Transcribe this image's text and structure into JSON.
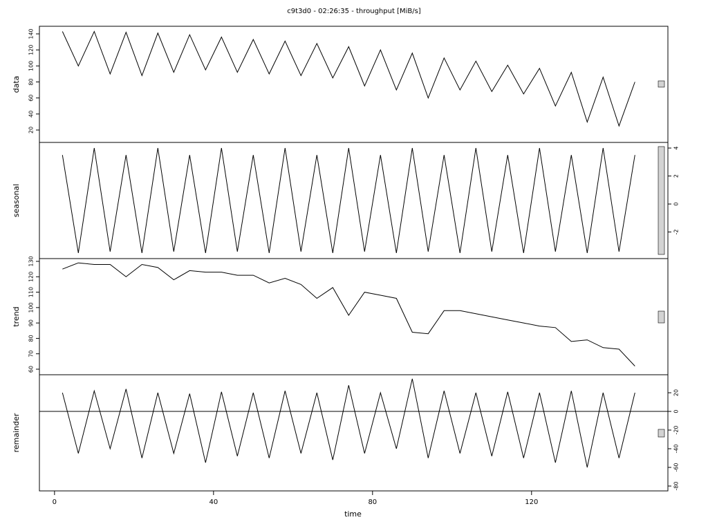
{
  "chart_data": [
    {
      "type": "line",
      "title": "c9t3d0 - 02:26:35 - throughput [MiB/s]",
      "ylabel": "data",
      "tick_side": "left",
      "xlim": [
        -3.8,
        154.3
      ],
      "ylim": [
        4.5,
        149.5
      ],
      "yticks": [
        20,
        40,
        60,
        80,
        100,
        120,
        140
      ],
      "x": [
        2,
        6,
        10,
        14,
        18,
        22,
        26,
        30,
        34,
        38,
        42,
        46,
        50,
        54,
        58,
        62,
        66,
        70,
        74,
        78,
        82,
        86,
        90,
        94,
        98,
        102,
        106,
        110,
        114,
        118,
        122,
        126,
        130,
        134,
        138,
        142,
        146
      ],
      "values": [
        143,
        100,
        143,
        90,
        142,
        88,
        141,
        92,
        139,
        95,
        136,
        92,
        133,
        90,
        131,
        88,
        128,
        85,
        124,
        75,
        120,
        70,
        116,
        60,
        110,
        70,
        106,
        68,
        101,
        65,
        97,
        50,
        92,
        30,
        86,
        25,
        80
      ],
      "color": "#000000"
    },
    {
      "type": "line",
      "ylabel": "seasonal",
      "tick_side": "right",
      "xlim": [
        -3.8,
        154.3
      ],
      "ylim": [
        -3.9,
        4.4
      ],
      "yticks": [
        -2,
        0,
        2,
        4
      ],
      "x": [
        2,
        6,
        10,
        14,
        18,
        22,
        26,
        30,
        34,
        38,
        42,
        46,
        50,
        54,
        58,
        62,
        66,
        70,
        74,
        78,
        82,
        86,
        90,
        94,
        98,
        102,
        106,
        110,
        114,
        118,
        122,
        126,
        130,
        134,
        138,
        142,
        146
      ],
      "values": [
        3.5,
        -3.5,
        4,
        -3.4,
        3.5,
        -3.5,
        4,
        -3.4,
        3.5,
        -3.5,
        4,
        -3.4,
        3.5,
        -3.5,
        4,
        -3.4,
        3.5,
        -3.5,
        4,
        -3.4,
        3.5,
        -3.5,
        4,
        -3.4,
        3.5,
        -3.5,
        4,
        -3.4,
        3.5,
        -3.5,
        4,
        -3.4,
        3.5,
        -3.5,
        4,
        -3.4,
        3.5
      ],
      "color": "#000000"
    },
    {
      "type": "line",
      "ylabel": "trend",
      "tick_side": "left",
      "xlim": [
        -3.8,
        154.3
      ],
      "ylim": [
        56.4,
        131.8
      ],
      "yticks": [
        60,
        70,
        80,
        90,
        100,
        110,
        120,
        130
      ],
      "x": [
        2,
        6,
        10,
        14,
        18,
        22,
        26,
        30,
        34,
        38,
        42,
        46,
        50,
        54,
        58,
        62,
        66,
        70,
        74,
        78,
        82,
        86,
        90,
        94,
        98,
        102,
        106,
        110,
        114,
        118,
        122,
        126,
        130,
        134,
        138,
        142,
        146
      ],
      "values": [
        125,
        129,
        128,
        128,
        120,
        128,
        126,
        118,
        124,
        123,
        123,
        121,
        121,
        116,
        119,
        115,
        106,
        113,
        95,
        110,
        108,
        106,
        84,
        83,
        98,
        98,
        96,
        94,
        92,
        90,
        88,
        87,
        78,
        79,
        74,
        73,
        62
      ],
      "color": "#000000"
    },
    {
      "type": "line",
      "ylabel": "remainder",
      "tick_side": "right",
      "xlabel": "time",
      "xlim": [
        -3.8,
        154.3
      ],
      "ylim": [
        -85.2,
        39.3
      ],
      "yticks": [
        -80,
        -60,
        -40,
        -20,
        0,
        20
      ],
      "xticks": [
        0,
        40,
        80,
        120
      ],
      "x": [
        2,
        6,
        10,
        14,
        18,
        22,
        26,
        30,
        34,
        38,
        42,
        46,
        50,
        54,
        58,
        62,
        66,
        70,
        74,
        78,
        82,
        86,
        90,
        94,
        98,
        102,
        106,
        110,
        114,
        118,
        122,
        126,
        130,
        134,
        138,
        142,
        146
      ],
      "values": [
        20,
        -45,
        22,
        -40,
        24,
        -50,
        20,
        -45,
        19,
        -55,
        21,
        -48,
        20,
        -50,
        22,
        -45,
        20,
        -52,
        28,
        -45,
        20,
        -40,
        35,
        -50,
        22,
        -45,
        20,
        -48,
        21,
        -50,
        20,
        -55,
        22,
        -60,
        20,
        -50,
        20
      ],
      "color": "#000000"
    }
  ]
}
